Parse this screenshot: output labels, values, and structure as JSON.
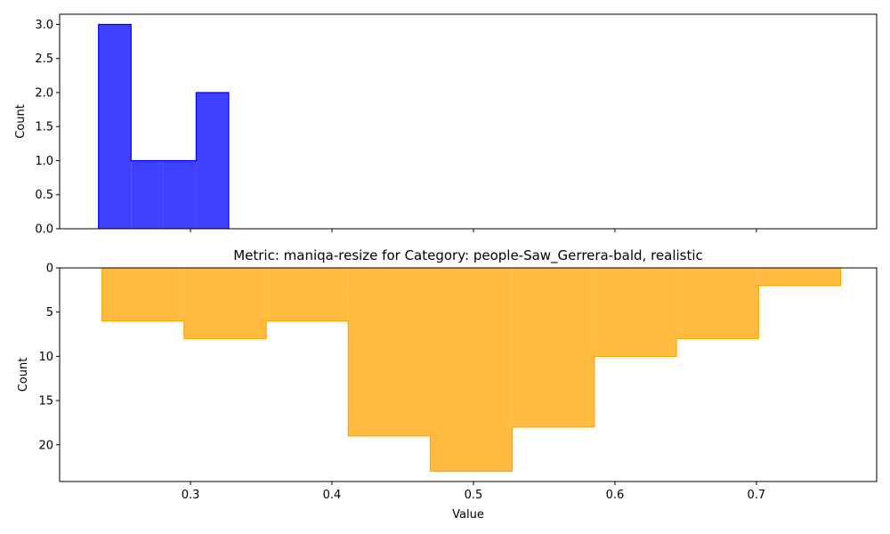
{
  "chart_data": [
    {
      "type": "histogram",
      "title": "",
      "xlabel": "",
      "ylabel": "Count",
      "xlim": [
        0.2075,
        0.785
      ],
      "ylim": [
        0,
        3.15
      ],
      "yticks": [
        0.0,
        0.5,
        1.0,
        1.5,
        2.0,
        2.5,
        3.0
      ],
      "ytick_labels": [
        "0.0",
        "0.5",
        "1.0",
        "1.5",
        "2.0",
        "2.5",
        "3.0"
      ],
      "xticks": [
        0.3,
        0.4,
        0.5,
        0.6,
        0.7
      ],
      "bin_edges": [
        0.235,
        0.258,
        0.281,
        0.304,
        0.327
      ],
      "counts": [
        3,
        1,
        1,
        2
      ],
      "color": "#0000ff",
      "fill_alpha": 0.75,
      "inverted_y": false
    },
    {
      "type": "histogram",
      "title": "Metric: maniqa-resize for Category: people-Saw_Gerrera-bald, realistic",
      "xlabel": "Value",
      "ylabel": "Count",
      "xlim": [
        0.2075,
        0.785
      ],
      "ylim": [
        0,
        24.15
      ],
      "yticks": [
        0,
        5,
        10,
        15,
        20
      ],
      "ytick_labels": [
        "0",
        "5",
        "10",
        "15",
        "20"
      ],
      "xticks": [
        0.3,
        0.4,
        0.5,
        0.6,
        0.7
      ],
      "xtick_labels": [
        "0.3",
        "0.4",
        "0.5",
        "0.6",
        "0.7"
      ],
      "bin_edges": [
        0.2375,
        0.2955,
        0.3535,
        0.4115,
        0.4695,
        0.5275,
        0.5855,
        0.6435,
        0.7015,
        0.7595
      ],
      "counts": [
        6,
        8,
        6,
        19,
        23,
        18,
        10,
        8,
        2
      ],
      "color": "#ffa500",
      "fill_alpha": 0.75,
      "inverted_y": true
    }
  ]
}
